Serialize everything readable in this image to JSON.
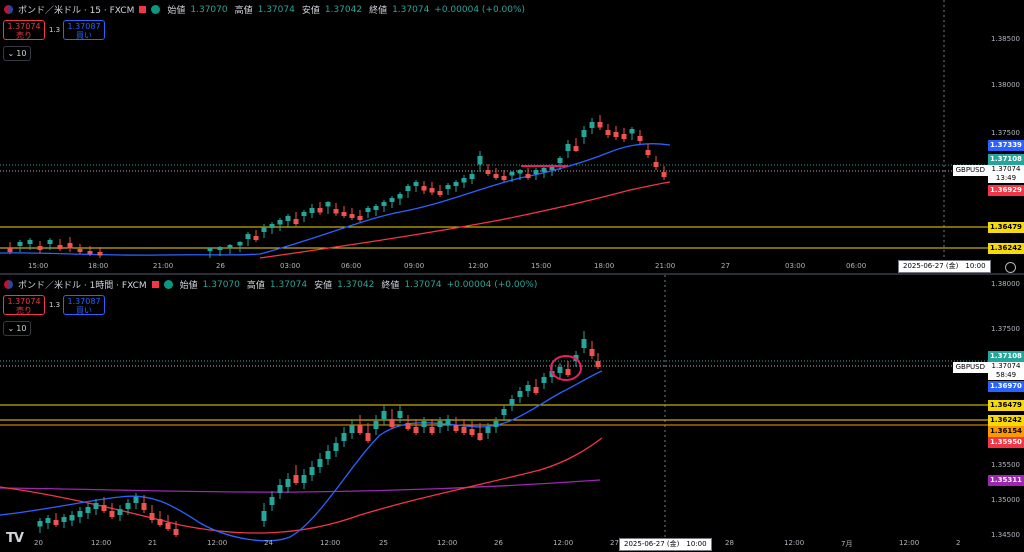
{
  "colors": {
    "up": "#26a69a",
    "down": "#ef5350",
    "ma_fast": "#2962ff",
    "ma_slow": "#f23645",
    "ma_long": "#9c27b0",
    "horizontal_level": "#f5d90a",
    "price_line": "#26a69a",
    "highlight": "#e91e63"
  },
  "panes": [
    {
      "legend": {
        "symbol": "ポンド／米ドル · 15 · FXCM",
        "open_label": "始値",
        "open": "1.37070",
        "high_label": "高値",
        "high": "1.37074",
        "low_label": "安値",
        "low": "1.37042",
        "close_label": "終値",
        "close": "1.37074",
        "change": "+0.00004 (+0.00%)"
      },
      "trade": {
        "sell_price": "1.37074",
        "sell_label": "売り",
        "spread": "1.3",
        "buy_price": "1.37087",
        "buy_label": "買い"
      },
      "quantity": "10",
      "price_axis": [
        "1.38500",
        "1.38000",
        "1.37500"
      ],
      "time_axis": [
        "15:00",
        "18:00",
        "21:00",
        "26",
        "03:00",
        "06:00",
        "09:00",
        "12:00",
        "15:00",
        "18:00",
        "21:00",
        "27",
        "03:00",
        "06:00"
      ],
      "tags": [
        {
          "text": "1.37339",
          "bg": "#2962ff",
          "fg": "#ffffff"
        },
        {
          "text": "1.37108",
          "bg": "#26a69a",
          "fg": "#ffffff"
        },
        {
          "text": "1.36929",
          "bg": "#f23645",
          "fg": "#ffffff"
        },
        {
          "text": "1.36479",
          "bg": "#f5d90a",
          "fg": "#000000"
        },
        {
          "text": "1.36242",
          "bg": "#f5d90a",
          "fg": "#000000"
        }
      ],
      "symbol_tag": "GBPUSD",
      "current_price": "1.37074",
      "countdown": "13:49",
      "crosshair_time": "2025-06-27 (金)　10:00"
    },
    {
      "legend": {
        "symbol": "ポンド／米ドル · 1時間 · FXCM",
        "open_label": "始値",
        "open": "1.37070",
        "high_label": "高値",
        "high": "1.37074",
        "low_label": "安値",
        "low": "1.37042",
        "close_label": "終値",
        "close": "1.37074",
        "change": "+0.00004 (+0.00%)"
      },
      "trade": {
        "sell_price": "1.37074",
        "sell_label": "売り",
        "spread": "1.3",
        "buy_price": "1.37087",
        "buy_label": "買い"
      },
      "quantity": "10",
      "price_axis": [
        "1.38000",
        "1.37500",
        "1.35500",
        "1.35000",
        "1.34500"
      ],
      "time_axis": [
        "20",
        "12:00",
        "21",
        "12:00",
        "24",
        "12:00",
        "25",
        "12:00",
        "26",
        "12:00",
        "27",
        "28",
        "12:00",
        "7月",
        "12:00",
        "2"
      ],
      "tags": [
        {
          "text": "1.37108",
          "bg": "#26a69a",
          "fg": "#ffffff"
        },
        {
          "text": "1.36970",
          "bg": "#2962ff",
          "fg": "#ffffff"
        },
        {
          "text": "1.36479",
          "bg": "#f5d90a",
          "fg": "#000000"
        },
        {
          "text": "1.36242",
          "bg": "#f5d90a",
          "fg": "#000000"
        },
        {
          "text": "1.36154",
          "bg": "#ff9800",
          "fg": "#000000"
        },
        {
          "text": "1.35950",
          "bg": "#f23645",
          "fg": "#ffffff"
        },
        {
          "text": "1.35311",
          "bg": "#9c27b0",
          "fg": "#ffffff"
        }
      ],
      "symbol_tag": "GBPUSD",
      "current_price": "1.37074",
      "countdown": "58:49",
      "crosshair_time": "2025-06-27 (金)　10:00",
      "logo": "TV"
    }
  ]
}
